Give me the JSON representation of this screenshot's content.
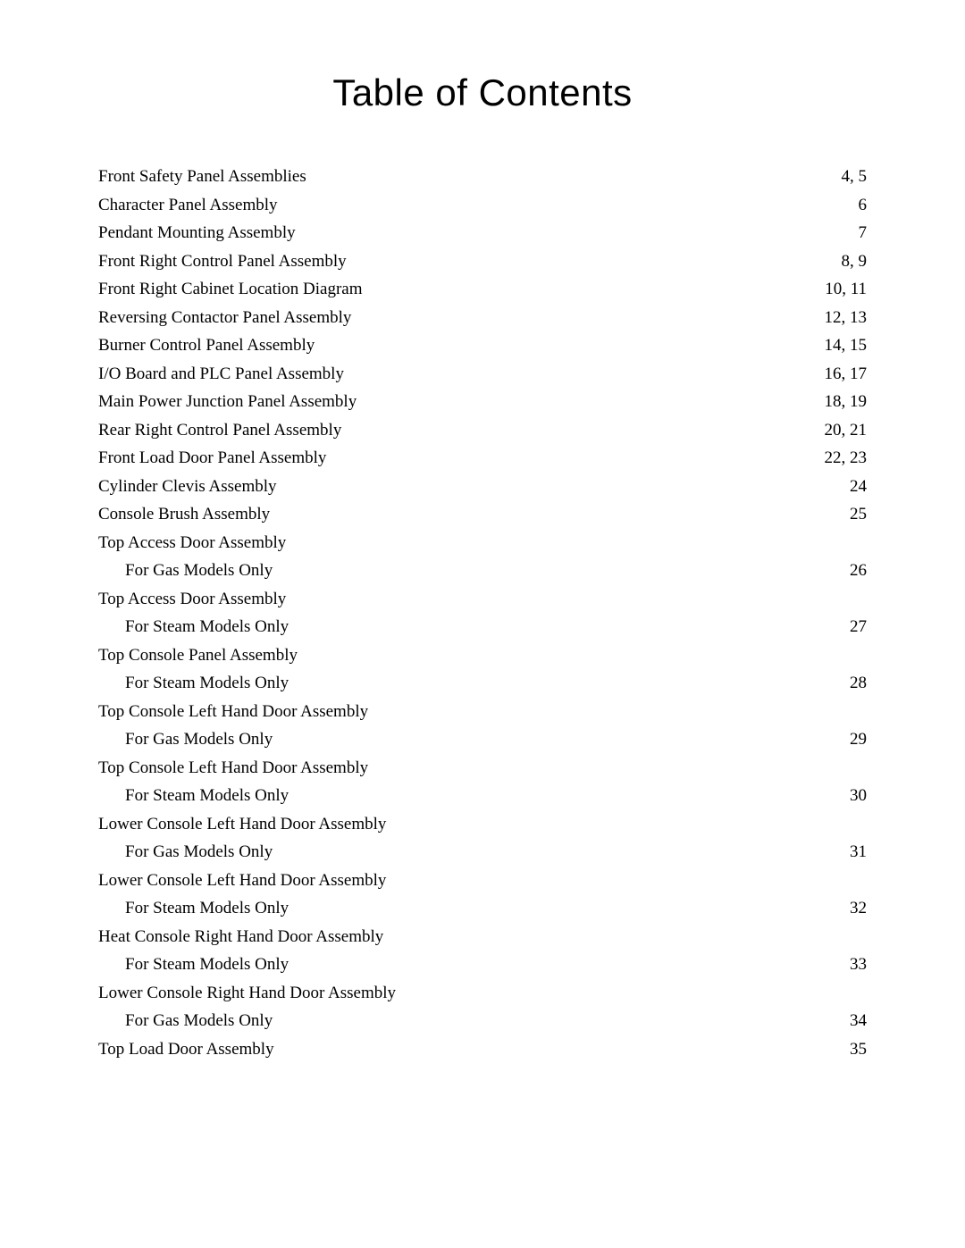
{
  "title": "Table of Contents",
  "text_color": "#000000",
  "background_color": "#ffffff",
  "title_font": "Arial",
  "body_font": "Times New Roman",
  "title_fontsize": 42,
  "body_fontsize": 19,
  "entries": [
    {
      "label": "Front Safety Panel Assemblies",
      "page": "4, 5"
    },
    {
      "label": "Character Panel Assembly",
      "page": "6"
    },
    {
      "label": "Pendant Mounting Assembly",
      "page": "7"
    },
    {
      "label": "Front Right Control Panel Assembly",
      "page": "8, 9"
    },
    {
      "label": "Front Right Cabinet Location Diagram",
      "page": "10, 11"
    },
    {
      "label": "Reversing Contactor Panel Assembly",
      "page": "12, 13"
    },
    {
      "label": "Burner Control Panel Assembly",
      "page": "14, 15"
    },
    {
      "label": "I/O Board and PLC Panel Assembly",
      "page": "16, 17"
    },
    {
      "label": "Main Power Junction Panel Assembly",
      "page": "18, 19"
    },
    {
      "label": "Rear Right Control Panel Assembly",
      "page": "20, 21"
    },
    {
      "label": "Front Load Door Panel Assembly",
      "page": "22, 23"
    },
    {
      "label": "Cylinder Clevis Assembly",
      "page": "24"
    },
    {
      "label": "Console Brush Assembly",
      "page": "25"
    },
    {
      "heading": "Top Access Door Assembly",
      "sub": {
        "label": "For Gas Models Only",
        "page": "26"
      }
    },
    {
      "heading": "Top Access Door Assembly",
      "sub": {
        "label": "For Steam Models Only",
        "page": "27"
      }
    },
    {
      "heading": "Top Console Panel Assembly",
      "sub": {
        "label": "For Steam Models Only",
        "page": "28"
      }
    },
    {
      "heading": "Top Console Left Hand Door Assembly",
      "sub": {
        "label": "For Gas Models Only",
        "page": "29"
      }
    },
    {
      "heading": "Top Console Left Hand Door Assembly",
      "sub": {
        "label": "For Steam Models Only",
        "page": "30"
      }
    },
    {
      "heading": "Lower Console Left Hand Door Assembly",
      "sub": {
        "label": "For Gas Models Only",
        "page": "31"
      }
    },
    {
      "heading": "Lower Console Left Hand Door Assembly",
      "sub": {
        "label": "For Steam Models Only",
        "page": "32"
      }
    },
    {
      "heading": "Heat Console Right Hand Door Assembly",
      "sub": {
        "label": "For Steam Models Only",
        "page": "33"
      }
    },
    {
      "heading": "Lower Console Right Hand Door Assembly",
      "sub": {
        "label": "For Gas Models Only",
        "page": "34"
      }
    },
    {
      "label": "Top Load Door Assembly",
      "page": "35"
    }
  ]
}
